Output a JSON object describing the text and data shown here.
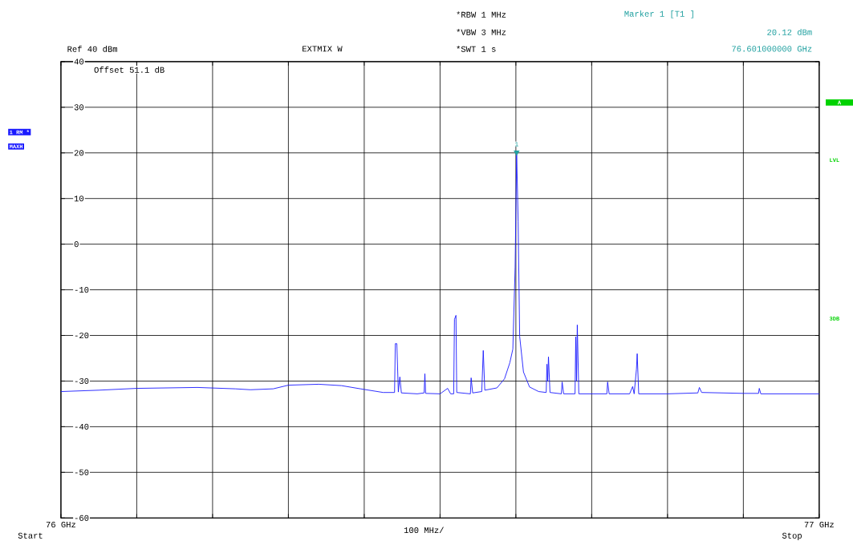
{
  "chart_data": {
    "type": "line",
    "x": [
      76.0,
      76.05,
      76.1,
      76.18,
      76.23,
      76.25,
      76.28,
      76.3,
      76.34,
      76.37,
      76.395,
      76.425,
      76.44,
      76.441,
      76.443,
      76.445,
      76.447,
      76.449,
      76.47,
      76.479,
      76.48,
      76.481,
      76.5,
      76.51,
      76.514,
      76.518,
      76.519,
      76.521,
      76.522,
      76.54,
      76.541,
      76.543,
      76.555,
      76.557,
      76.559,
      76.575,
      76.585,
      76.592,
      76.596,
      76.599,
      76.601,
      76.603,
      76.605,
      76.61,
      76.618,
      76.63,
      76.64,
      76.641,
      76.642,
      76.643,
      76.645,
      76.66,
      76.661,
      76.663,
      76.678,
      76.679,
      76.68,
      76.681,
      76.683,
      76.72,
      76.721,
      76.723,
      76.75,
      76.754,
      76.756,
      76.759,
      76.76,
      76.762,
      76.8,
      76.84,
      76.842,
      76.845,
      76.9,
      76.92,
      76.921,
      76.923,
      77.0
    ],
    "series": [
      {
        "color": "#1a1aff",
        "values": [
          -32.3,
          -32.0,
          -31.6,
          -31.4,
          -31.7,
          -31.9,
          -31.7,
          -30.9,
          -30.7,
          -31.0,
          -31.7,
          -32.5,
          -32.5,
          -21.8,
          -21.8,
          -32.4,
          -29.1,
          -32.6,
          -32.8,
          -32.6,
          -28.4,
          -32.7,
          -32.8,
          -31.6,
          -32.8,
          -32.8,
          -16.5,
          -15.6,
          -32.5,
          -32.8,
          -29.3,
          -32.6,
          -32.3,
          -23.3,
          -32.0,
          -31.5,
          -29.5,
          -26.0,
          -23.0,
          -5.0,
          20.12,
          5.0,
          -20.2,
          -28.0,
          -31.3,
          -32.3,
          -32.5,
          -26.3,
          -30.0,
          -24.7,
          -32.5,
          -32.8,
          -30.2,
          -32.8,
          -32.8,
          -20.3,
          -30.0,
          -17.7,
          -32.8,
          -32.8,
          -30.2,
          -32.8,
          -32.8,
          -31.2,
          -32.8,
          -27.4,
          -24.0,
          -32.8,
          -32.8,
          -32.6,
          -31.4,
          -32.5,
          -32.7,
          -32.7,
          -31.6,
          -32.8,
          -32.8
        ]
      }
    ],
    "xlim": [
      76,
      77
    ],
    "ylim": [
      -60,
      40
    ],
    "xticks": [
      {
        "value": 76,
        "label": "76 GHz"
      },
      {
        "value": 76.1,
        "label": null
      },
      {
        "value": 76.2,
        "label": null
      },
      {
        "value": 76.3,
        "label": null
      },
      {
        "value": 76.4,
        "label": null
      },
      {
        "value": 76.5,
        "label": null
      },
      {
        "value": 76.6,
        "label": null
      },
      {
        "value": 76.7,
        "label": null
      },
      {
        "value": 76.8,
        "label": null
      },
      {
        "value": 76.9,
        "label": null
      },
      {
        "value": 77,
        "label": "77 GHz"
      }
    ],
    "yticks": [
      -60,
      -50,
      -40,
      -30,
      -20,
      -10,
      0,
      10,
      20,
      30,
      40
    ],
    "grid": true,
    "annotations": [
      "Ref 40 dBm",
      "EXTMIX W",
      "*RBW 1 MHz",
      "*VBW 3 MHz",
      "*SWT 1 s",
      "Marker 1 [T1 ]",
      "20.12 dBm",
      "76.601000000 GHz",
      "Offset 51.1 dB",
      "1 RM *",
      "MAXH",
      "A",
      "LVL",
      "3DB",
      "100 MHz/",
      {
        "text": "1",
        "x": 76.601,
        "y": 20.12
      },
      "Start",
      "Stop"
    ]
  }
}
